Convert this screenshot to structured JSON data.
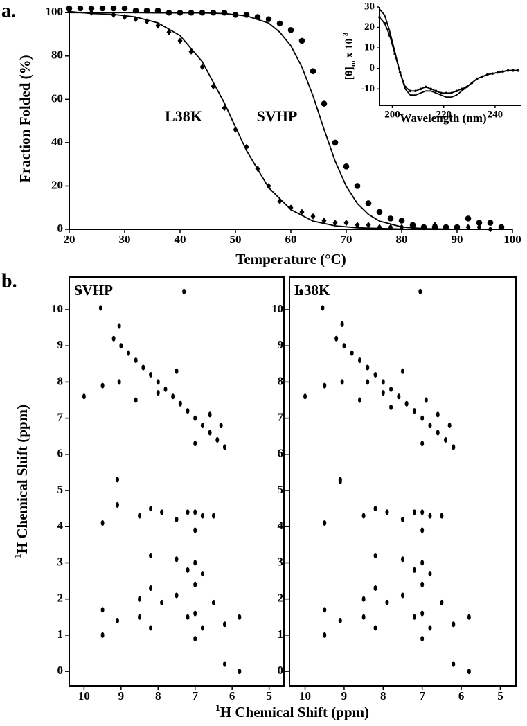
{
  "panel_labels": [
    "a.",
    "b."
  ],
  "chart_data": [
    {
      "type": "line",
      "xlabel": "Temperature (°C)",
      "ylabel": "Fraction Folded (%)",
      "annotations": [
        "L38K",
        "SVHP"
      ],
      "xlim": [
        20,
        100
      ],
      "ylim": [
        0,
        102
      ],
      "xticks": [
        20,
        30,
        40,
        50,
        60,
        70,
        80,
        90,
        100
      ],
      "yticks": [
        0,
        20,
        40,
        60,
        80,
        100
      ],
      "series": [
        {
          "style": "circle",
          "color": "#000000",
          "x": [
            20,
            22,
            24,
            26,
            28,
            30,
            32,
            34,
            36,
            38,
            40,
            42,
            44,
            46,
            48,
            50,
            52,
            54,
            56,
            58,
            60,
            62,
            64,
            66,
            68,
            70,
            72,
            74,
            76,
            78,
            80,
            82,
            84,
            86,
            88,
            90,
            92,
            94,
            96,
            98
          ],
          "values": [
            102,
            102,
            102,
            102,
            102,
            102,
            101,
            101,
            101,
            100,
            100,
            100,
            100,
            100,
            100,
            99,
            99,
            98,
            97,
            95,
            92,
            87,
            73,
            58,
            40,
            29,
            20,
            12,
            8,
            5,
            4,
            2,
            1,
            1,
            1,
            1,
            5,
            3,
            3,
            1
          ]
        },
        {
          "style": "line",
          "color": "#000000",
          "x": [
            20,
            24,
            28,
            32,
            36,
            40,
            44,
            48,
            52,
            56,
            58,
            60,
            62,
            64,
            66,
            68,
            70,
            72,
            74,
            76,
            80,
            84,
            90,
            100
          ],
          "values": [
            100,
            100,
            100,
            100,
            99.9,
            99.9,
            99.9,
            99.6,
            98.5,
            95.2,
            91,
            84.7,
            74.9,
            61.6,
            46.1,
            31.4,
            19.9,
            11.9,
            6.9,
            3.8,
            1.1,
            0.3,
            0,
            0
          ]
        },
        {
          "style": "diamond",
          "color": "#000000",
          "x": [
            20,
            24,
            28,
            30,
            32,
            34,
            36,
            38,
            40,
            42,
            44,
            46,
            48,
            50,
            52,
            54,
            56,
            58,
            60,
            62,
            64,
            66,
            68,
            70,
            72,
            74,
            76,
            78,
            80,
            82,
            84,
            86,
            88,
            90,
            92,
            94,
            96,
            98
          ],
          "values": [
            101,
            100,
            99,
            98,
            97,
            96,
            94,
            91,
            87,
            82,
            75,
            66,
            56,
            46,
            38,
            28,
            20,
            13,
            10,
            8,
            6,
            4,
            3,
            3,
            2,
            2,
            1,
            1,
            1,
            1,
            1,
            2,
            1,
            1,
            1,
            1,
            0,
            1
          ]
        },
        {
          "style": "line",
          "color": "#000000",
          "x": [
            20,
            24,
            28,
            32,
            36,
            40,
            44,
            48,
            50,
            52,
            56,
            60,
            64,
            68,
            72,
            80,
            90,
            100
          ],
          "values": [
            100.5,
            99.6,
            99.2,
            98,
            95.3,
            89.4,
            77.4,
            58.3,
            47.2,
            36.3,
            19.2,
            9.1,
            3.8,
            1.6,
            0.7,
            0.1,
            0,
            0
          ]
        }
      ]
    },
    {
      "type": "line",
      "xlabel": "Wavelength (nm)",
      "ylabel": {
        "main": "[θ]",
        "sub": "m",
        "mid": " x 10",
        "sup": "-3"
      },
      "xlim": [
        195,
        250
      ],
      "ylim": [
        -18,
        30
      ],
      "xticks": [
        200,
        220,
        240
      ],
      "yticks": [
        30,
        20,
        10,
        0,
        -10
      ],
      "series": [
        {
          "style": "line",
          "color": "#000000",
          "x": [
            195,
            197,
            199,
            201,
            203,
            205,
            207,
            209,
            211,
            213,
            215,
            217,
            219,
            221,
            223,
            225,
            227,
            229,
            231,
            233,
            235,
            237,
            239,
            241,
            243,
            245,
            247,
            249
          ],
          "values": [
            29,
            26,
            18,
            8,
            -2,
            -10,
            -13,
            -13,
            -12,
            -11,
            -11,
            -12,
            -13,
            -14,
            -14,
            -13,
            -11,
            -9,
            -7,
            -5,
            -4,
            -3,
            -2.5,
            -2,
            -1.5,
            -1,
            -1,
            -1
          ]
        },
        {
          "style": "line+dot",
          "color": "#000000",
          "x": [
            195,
            197,
            199,
            201,
            203,
            205,
            207,
            209,
            211,
            213,
            215,
            217,
            219,
            221,
            223,
            225,
            227,
            229,
            231,
            233,
            235,
            237,
            239,
            241,
            243,
            245,
            247,
            249
          ],
          "values": [
            25,
            22,
            16,
            7,
            -2,
            -9,
            -11,
            -11,
            -10,
            -9,
            -10,
            -11,
            -12,
            -12,
            -12,
            -11,
            -10,
            -9,
            -7,
            -5,
            -4,
            -3,
            -2.5,
            -2,
            -1.5,
            -1,
            -1,
            -1
          ]
        }
      ]
    },
    {
      "type": "scatter",
      "title": "SVHP",
      "xlabel": {
        "sup": "1",
        "main": "H Chemical Shift (ppm)"
      },
      "ylabel": {
        "sup": "1",
        "main": "H Chemical Shift (ppm)"
      },
      "xlim": [
        10.4,
        4.6
      ],
      "ylim": [
        -0.4,
        10.9
      ],
      "xticks": [
        10,
        9,
        8,
        7,
        6,
        5
      ],
      "yticks": [
        0,
        1,
        2,
        3,
        4,
        5,
        6,
        7,
        8,
        9,
        10
      ],
      "series": [
        {
          "color": "#000000",
          "x": [
            9.2,
            9.0,
            8.8,
            8.6,
            8.4,
            8.2,
            8.0,
            7.8,
            7.6,
            7.4,
            7.2,
            7.0,
            6.8,
            6.6,
            6.4,
            6.2,
            10.1,
            9.55,
            9.05,
            9.5,
            9.5,
            9.5,
            9.1,
            9.1,
            8.5,
            8.5,
            8.5,
            8.2,
            8.2,
            8.2,
            8.2,
            7.9,
            7.9,
            7.5,
            7.5,
            7.5,
            7.2,
            7.2,
            7.2,
            7.0,
            7.0,
            7.0,
            7.0,
            7.0,
            7.0,
            6.8,
            6.8,
            6.8,
            6.5,
            6.5,
            6.2,
            6.2,
            5.8,
            5.8,
            10.0,
            9.5,
            9.05,
            8.6,
            8.0,
            7.0,
            7.5,
            7.3,
            9.1,
            6.6,
            6.3
          ],
          "values": [
            9.2,
            9.0,
            8.8,
            8.6,
            8.4,
            8.2,
            8.0,
            7.8,
            7.6,
            7.4,
            7.2,
            7.0,
            6.8,
            6.6,
            6.4,
            6.2,
            10.5,
            10.05,
            9.55,
            1.7,
            1.0,
            4.1,
            1.4,
            4.6,
            1.5,
            2.0,
            4.3,
            1.2,
            2.3,
            3.2,
            4.5,
            1.9,
            4.4,
            2.1,
            3.1,
            4.2,
            1.5,
            2.8,
            4.4,
            0.9,
            1.6,
            2.4,
            3.0,
            3.9,
            4.4,
            1.2,
            2.7,
            4.3,
            1.9,
            4.3,
            0.2,
            1.3,
            0.0,
            1.5,
            7.6,
            7.9,
            8.0,
            7.5,
            7.7,
            6.3,
            8.3,
            10.5,
            5.3,
            7.1,
            6.8
          ]
        }
      ]
    },
    {
      "type": "scatter",
      "title": "L38K",
      "xlim": [
        10.4,
        4.6
      ],
      "ylim": [
        -0.4,
        10.9
      ],
      "xticks": [
        10,
        9,
        8,
        7,
        6,
        5
      ],
      "yticks": [
        0,
        1,
        2,
        3,
        4,
        5,
        6,
        7,
        8,
        9,
        10
      ],
      "series": [
        {
          "color": "#000000",
          "x": [
            9.2,
            9.0,
            8.8,
            8.6,
            8.4,
            8.2,
            8.0,
            7.8,
            7.6,
            7.4,
            7.2,
            7.0,
            6.8,
            6.6,
            6.4,
            6.2,
            10.1,
            9.55,
            9.05,
            9.5,
            9.5,
            9.5,
            9.1,
            9.1,
            8.5,
            8.5,
            8.5,
            8.2,
            8.2,
            8.2,
            8.2,
            7.9,
            7.9,
            7.5,
            7.5,
            7.5,
            7.2,
            7.2,
            7.2,
            7.0,
            7.0,
            7.0,
            7.0,
            7.0,
            7.0,
            6.8,
            6.8,
            6.8,
            6.5,
            6.5,
            6.2,
            6.2,
            5.8,
            5.8,
            10.0,
            9.5,
            9.05,
            8.6,
            8.0,
            7.0,
            7.5,
            7.05,
            9.1,
            6.6,
            6.3,
            6.9,
            7.8,
            8.4
          ],
          "values": [
            9.2,
            9.0,
            8.8,
            8.6,
            8.4,
            8.2,
            8.0,
            7.8,
            7.6,
            7.4,
            7.2,
            7.0,
            6.8,
            6.6,
            6.4,
            6.2,
            10.5,
            10.05,
            9.6,
            1.7,
            1.0,
            4.1,
            1.4,
            5.25,
            1.5,
            2.0,
            4.3,
            1.2,
            2.3,
            3.2,
            4.5,
            1.9,
            4.4,
            2.1,
            3.1,
            4.2,
            1.5,
            2.8,
            4.4,
            0.9,
            1.6,
            2.4,
            3.0,
            3.9,
            4.4,
            1.2,
            2.7,
            4.3,
            1.9,
            4.3,
            0.2,
            1.3,
            0.0,
            1.5,
            7.6,
            7.9,
            8.0,
            7.5,
            7.7,
            6.3,
            8.3,
            10.5,
            5.3,
            7.1,
            6.8,
            7.5,
            7.3,
            8.0
          ]
        }
      ]
    }
  ]
}
